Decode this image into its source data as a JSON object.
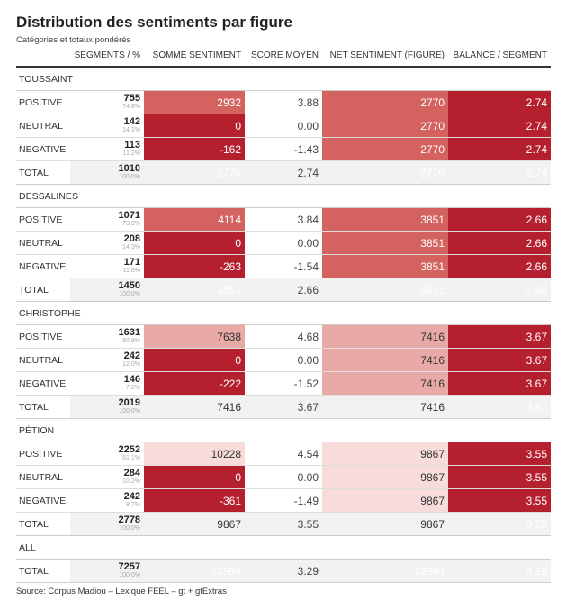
{
  "title": "Distribution des sentiments par figure",
  "subtitle": "Catégories et totaux pondérés",
  "columns": [
    "",
    "SEGMENTS / %",
    "SOMME SENTIMENT",
    "SCORE MOYEN",
    "NET SENTIMENT (FIGURE)",
    "BALANCE / SEGMENT"
  ],
  "colors": {
    "dark_red": "#b5202e",
    "medium_red": "#d4625f",
    "light_red": "#e9aaa7",
    "pale_red": "#f7dcdb",
    "total_gray": "#f2f2f2"
  },
  "groups": [
    {
      "name": "TOUSSAINT",
      "rows": [
        {
          "label": "POSITIVE",
          "n": "755",
          "pct": "74.8%",
          "somme": "2932",
          "score": "3.88",
          "net": "2770",
          "balance": "2.74",
          "somme_color": "#d4625f",
          "net_color": "#d4625f",
          "bal_color": "#b5202e"
        },
        {
          "label": "NEUTRAL",
          "n": "142",
          "pct": "14.1%",
          "somme": "0",
          "score": "0.00",
          "net": "2770",
          "balance": "2.74",
          "somme_color": "#b5202e",
          "net_color": "#d4625f",
          "bal_color": "#b5202e"
        },
        {
          "label": "NEGATIVE",
          "n": "113",
          "pct": "11.2%",
          "somme": "-162",
          "score": "-1.43",
          "net": "2770",
          "balance": "2.74",
          "somme_color": "#b5202e",
          "net_color": "#d4625f",
          "bal_color": "#b5202e"
        }
      ],
      "total": {
        "label": "TOTAL",
        "n": "1010",
        "pct": "100.0%",
        "somme": "2770",
        "score": "2.74",
        "net": "2770",
        "balance": "2.74",
        "somme_text": "#ffffff",
        "net_text": "#ffffff"
      }
    },
    {
      "name": "DESSALINES",
      "rows": [
        {
          "label": "POSITIVE",
          "n": "1071",
          "pct": "73.9%",
          "somme": "4114",
          "score": "3.84",
          "net": "3851",
          "balance": "2.66",
          "somme_color": "#d4625f",
          "net_color": "#d4625f",
          "bal_color": "#b5202e"
        },
        {
          "label": "NEUTRAL",
          "n": "208",
          "pct": "14.3%",
          "somme": "0",
          "score": "0.00",
          "net": "3851",
          "balance": "2.66",
          "somme_color": "#b5202e",
          "net_color": "#d4625f",
          "bal_color": "#b5202e"
        },
        {
          "label": "NEGATIVE",
          "n": "171",
          "pct": "11.8%",
          "somme": "-263",
          "score": "-1.54",
          "net": "3851",
          "balance": "2.66",
          "somme_color": "#b5202e",
          "net_color": "#d4625f",
          "bal_color": "#b5202e"
        }
      ],
      "total": {
        "label": "TOTAL",
        "n": "1450",
        "pct": "100.0%",
        "somme": "3851",
        "score": "2.66",
        "net": "3851",
        "balance": "2.66",
        "somme_text": "#ffffff",
        "net_text": "#ffffff"
      }
    },
    {
      "name": "CHRISTOPHE",
      "rows": [
        {
          "label": "POSITIVE",
          "n": "1631",
          "pct": "80.8%",
          "somme": "7638",
          "score": "4.68",
          "net": "7416",
          "balance": "3.67",
          "somme_color": "#e9aaa7",
          "net_color": "#e9aaa7",
          "bal_color": "#b5202e"
        },
        {
          "label": "NEUTRAL",
          "n": "242",
          "pct": "12.0%",
          "somme": "0",
          "score": "0.00",
          "net": "7416",
          "balance": "3.67",
          "somme_color": "#b5202e",
          "net_color": "#e9aaa7",
          "bal_color": "#b5202e"
        },
        {
          "label": "NEGATIVE",
          "n": "146",
          "pct": "7.2%",
          "somme": "-222",
          "score": "-1.52",
          "net": "7416",
          "balance": "3.67",
          "somme_color": "#b5202e",
          "net_color": "#e9aaa7",
          "bal_color": "#b5202e"
        }
      ],
      "total": {
        "label": "TOTAL",
        "n": "2019",
        "pct": "100.0%",
        "somme": "7416",
        "score": "3.67",
        "net": "7416",
        "balance": "3.67",
        "somme_text": "#333333",
        "net_text": "#333333"
      }
    },
    {
      "name": "PÉTION",
      "rows": [
        {
          "label": "POSITIVE",
          "n": "2252",
          "pct": "81.1%",
          "somme": "10228",
          "score": "4.54",
          "net": "9867",
          "balance": "3.55",
          "somme_color": "#f7dcdb",
          "net_color": "#f7dcdb",
          "bal_color": "#b5202e"
        },
        {
          "label": "NEUTRAL",
          "n": "284",
          "pct": "10.2%",
          "somme": "0",
          "score": "0.00",
          "net": "9867",
          "balance": "3.55",
          "somme_color": "#b5202e",
          "net_color": "#f7dcdb",
          "bal_color": "#b5202e"
        },
        {
          "label": "NEGATIVE",
          "n": "242",
          "pct": "8.7%",
          "somme": "-361",
          "score": "-1.49",
          "net": "9867",
          "balance": "3.55",
          "somme_color": "#b5202e",
          "net_color": "#f7dcdb",
          "bal_color": "#b5202e"
        }
      ],
      "total": {
        "label": "TOTAL",
        "n": "2778",
        "pct": "100.0%",
        "somme": "9867",
        "score": "3.55",
        "net": "9867",
        "balance": "3.55",
        "somme_text": "#333333",
        "net_text": "#333333"
      }
    },
    {
      "name": "ALL",
      "rows": [],
      "total": {
        "label": "TOTAL",
        "n": "7257",
        "pct": "100.0%",
        "somme": "23904",
        "score": "3.29",
        "net": "23904",
        "balance": "3.29",
        "somme_text": "#ffffff",
        "net_text": "#ffffff"
      }
    }
  ],
  "source": "Source: Corpus Madiou – Lexique FEEL – gt + gtExtras"
}
